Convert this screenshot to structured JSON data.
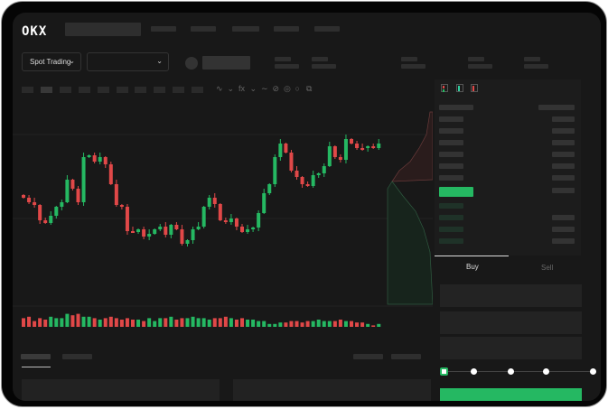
{
  "header": {
    "logo": "OKX",
    "mode_selector": "Spot Trading"
  },
  "orderbook": {
    "view_icons": [
      "orderbook-both-icon",
      "orderbook-bids-icon",
      "orderbook-asks-icon"
    ]
  },
  "order_form": {
    "tabs": [
      {
        "label": "Buy",
        "active": true
      },
      {
        "label": "Sell",
        "active": false
      }
    ],
    "slider_percent": 0,
    "slider_stops": [
      0,
      25,
      50,
      75,
      100
    ]
  },
  "colors": {
    "up": "#25b862",
    "down": "#e04848",
    "background": "#181818",
    "accent": "#25b862"
  },
  "chart_data": {
    "type": "candlestick",
    "close": [
      95,
      90,
      87,
      70,
      67,
      75,
      85,
      90,
      115,
      105,
      90,
      140,
      142,
      135,
      140,
      132,
      110,
      87,
      85,
      58,
      57,
      60,
      52,
      55,
      60,
      63,
      54,
      65,
      60,
      44,
      48,
      60,
      63,
      85,
      95,
      88,
      70,
      68,
      72,
      63,
      57,
      60,
      62,
      78,
      100,
      110,
      140,
      155,
      145,
      125,
      118,
      110,
      108,
      120,
      122,
      130,
      152,
      140,
      137,
      160,
      155,
      150,
      150,
      152,
      150,
      155
    ],
    "volume": [
      6,
      7,
      4,
      6,
      5,
      7,
      6,
      6,
      9,
      8,
      9,
      7,
      7,
      6,
      5,
      6,
      7,
      6,
      5,
      6,
      5,
      5,
      4,
      6,
      4,
      6,
      6,
      7,
      5,
      6,
      6,
      7,
      6,
      6,
      5,
      6,
      6,
      7,
      6,
      5,
      6,
      5,
      5,
      4,
      4,
      2,
      2,
      3,
      3,
      4,
      4,
      3,
      4,
      4,
      5,
      4,
      4,
      4,
      5,
      4,
      4,
      3,
      3,
      2,
      1,
      2
    ],
    "grid": true,
    "depth_chart": true
  }
}
